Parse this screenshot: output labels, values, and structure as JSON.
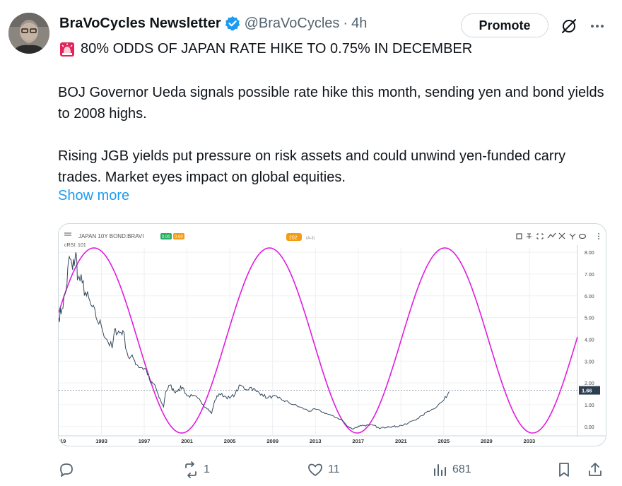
{
  "tweet": {
    "author_name": "BraVoCycles Newsletter",
    "handle": "@BraVoCycles",
    "separator": "·",
    "time": "4h",
    "promote_label": "Promote",
    "headline": "80% ODDS OF JAPAN RATE HIKE TO 0.75% IN DECEMBER",
    "paragraph1": "BOJ Governor Ueda signals possible rate hike this month, sending yen and bond yields to 2008 highs.",
    "paragraph2": "Rising JGB yields put pressure on risk assets and could unwind yen-funded carry trades. Market eyes impact on global equities.",
    "show_more": "Show more",
    "icons": {
      "avatar": "avatar-photo",
      "verified": "verified-badge-icon",
      "grok": "grok-icon",
      "more": "more-icon",
      "siren": "siren-icon"
    }
  },
  "chart_card": {
    "symbol_label": "JAPAN 10Y BOND:BRAVI",
    "badge1": "0.00",
    "badge2": "0.00",
    "badge3": "202",
    "badge3_sub": "(A-3)",
    "indicator_label": "cRSI: 101",
    "last_value_label": "1.66",
    "colors": {
      "price_line": "#34495e",
      "cycle_line": "#e01ce0",
      "badge_green": "#27ae60",
      "badge_orange": "#f39c12",
      "last_badge": "#2c3e50"
    }
  },
  "chart_data": {
    "type": "line",
    "x_ticks": [
      "19",
      "1993",
      "1997",
      "2001",
      "2005",
      "2009",
      "2013",
      "2017",
      "2021",
      "2025",
      "2029",
      "2033"
    ],
    "y_ticks": [
      "8.00",
      "7.00",
      "6.00",
      "5.00",
      "4.00",
      "3.00",
      "2.00",
      "1.00",
      "0.00"
    ],
    "ylim": [
      -0.3,
      8.2
    ],
    "xlim": [
      1989.0,
      2037.5
    ],
    "price_series": {
      "x": [
        1989.0,
        1989.3,
        1989.7,
        1990.0,
        1990.3,
        1990.6,
        1990.8,
        1991.2,
        1991.6,
        1992.0,
        1992.5,
        1993.0,
        1993.5,
        1994.0,
        1994.3,
        1994.7,
        1995.0,
        1995.5,
        1996.0,
        1996.4,
        1996.8,
        1997.2,
        1997.6,
        1998.0,
        1998.4,
        1998.8,
        1999.0,
        1999.4,
        1999.8,
        2000.2,
        2000.6,
        2001.0,
        2001.5,
        2002.0,
        2002.5,
        2003.0,
        2003.3,
        2003.6,
        2004.0,
        2004.5,
        2005.0,
        2005.5,
        2006.0,
        2006.5,
        2007.0,
        2007.5,
        2008.0,
        2008.5,
        2009.0,
        2009.5,
        2010.0,
        2010.5,
        2011.0,
        2011.5,
        2012.0,
        2012.5,
        2013.0,
        2013.5,
        2014.0,
        2014.5,
        2015.0,
        2015.5,
        2016.0,
        2016.4,
        2016.8,
        2017.2,
        2017.6,
        2018.0,
        2018.5,
        2019.0,
        2019.4,
        2019.8,
        2020.2,
        2020.6,
        2021.0,
        2021.5,
        2022.0,
        2022.5,
        2023.0,
        2023.5,
        2024.0,
        2024.5,
        2025.0,
        2025.5
      ],
      "y": [
        5.0,
        5.4,
        6.3,
        7.8,
        7.2,
        8.0,
        6.8,
        6.6,
        6.0,
        5.6,
        5.0,
        4.6,
        4.0,
        3.6,
        4.5,
        4.3,
        4.4,
        3.2,
        3.1,
        2.8,
        2.7,
        2.6,
        2.0,
        1.9,
        1.3,
        0.9,
        1.6,
        1.9,
        1.6,
        1.7,
        1.8,
        1.4,
        1.4,
        1.3,
        1.0,
        0.8,
        0.6,
        1.2,
        1.5,
        1.4,
        1.3,
        1.5,
        1.9,
        1.7,
        1.8,
        1.6,
        1.5,
        1.3,
        1.4,
        1.3,
        1.2,
        1.1,
        1.0,
        0.9,
        0.8,
        0.7,
        0.8,
        0.7,
        0.6,
        0.5,
        0.4,
        0.3,
        0.0,
        -0.1,
        -0.05,
        0.05,
        0.05,
        0.05,
        0.05,
        -0.1,
        -0.05,
        0.0,
        0.0,
        0.0,
        0.05,
        0.1,
        0.25,
        0.35,
        0.5,
        0.7,
        0.8,
        1.0,
        1.2,
        1.6
      ]
    },
    "cycle_series": {
      "type": "sine",
      "x_start": 1989.0,
      "x_end": 2037.5,
      "period_years": 16.4,
      "peak_x": 1992.3,
      "min_y": -0.3,
      "max_y": 8.2
    },
    "horizontal_line": 1.66,
    "last_value": 1.66
  },
  "actions": {
    "reply_count": "",
    "retweet_count": "1",
    "like_count": "11",
    "views_count": "681",
    "icons": [
      "reply-icon",
      "retweet-icon",
      "like-icon",
      "views-icon",
      "bookmark-icon",
      "share-icon"
    ]
  }
}
